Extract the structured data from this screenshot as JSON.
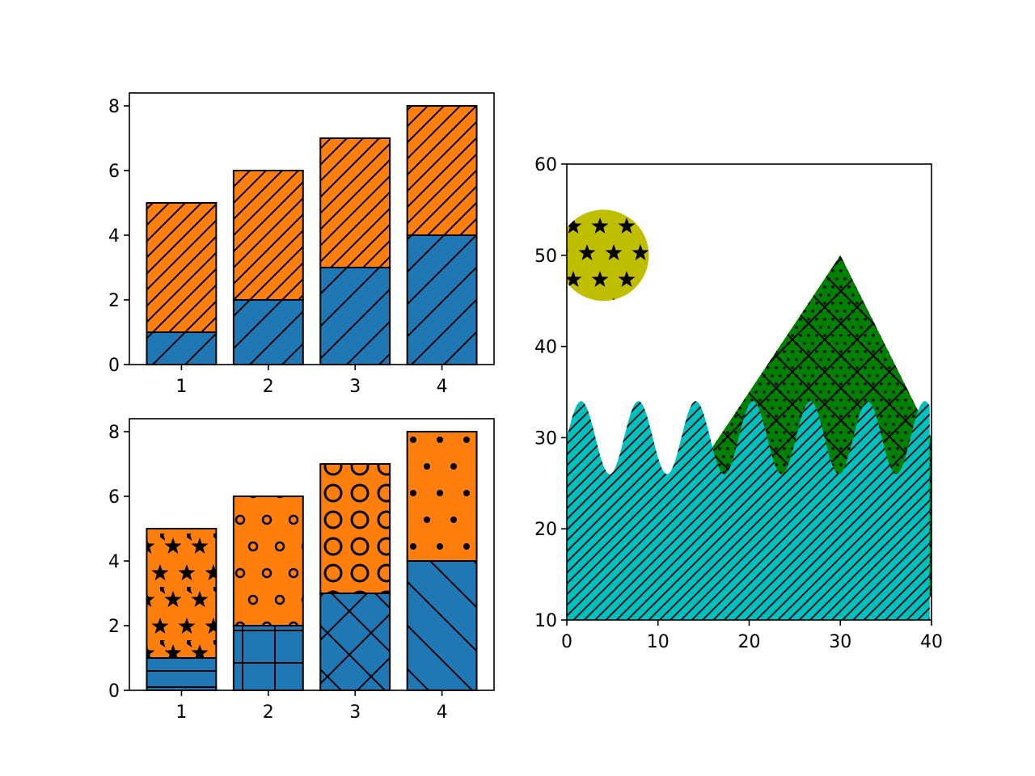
{
  "chart_data": [
    {
      "type": "bar",
      "stacked": true,
      "categories": [
        1,
        2,
        3,
        4
      ],
      "series": [
        {
          "values": [
            1,
            2,
            3,
            4
          ],
          "color": "#1f77b4",
          "hatch": [
            "/",
            "/",
            "/",
            "/"
          ]
        },
        {
          "values": [
            4,
            4,
            4,
            4
          ],
          "bottom": [
            1,
            2,
            3,
            4
          ],
          "color": "#ff7f0e",
          "hatch": [
            "//",
            "//",
            "//",
            "//"
          ]
        }
      ],
      "xlim": [
        0.4,
        4.6
      ],
      "ylim": [
        0,
        8.4
      ],
      "xticks": [
        "1",
        "2",
        "3",
        "4"
      ],
      "yticks": [
        "0",
        "2",
        "4",
        "6",
        "8"
      ],
      "edgecolor": "#000000"
    },
    {
      "type": "bar",
      "stacked": true,
      "categories": [
        1,
        2,
        3,
        4
      ],
      "series": [
        {
          "values": [
            1,
            2,
            3,
            4
          ],
          "color": "#1f77b4",
          "hatch": [
            "-",
            "+",
            "x",
            "\\"
          ]
        },
        {
          "values": [
            4,
            4,
            4,
            4
          ],
          "bottom": [
            1,
            2,
            3,
            4
          ],
          "color": "#ff7f0e",
          "hatch": [
            "*",
            "o",
            "O",
            "."
          ]
        }
      ],
      "xlim": [
        0.4,
        4.6
      ],
      "ylim": [
        0,
        8.4
      ],
      "xticks": [
        "1",
        "2",
        "3",
        "4"
      ],
      "yticks": [
        "0",
        "2",
        "4",
        "6",
        "8"
      ],
      "edgecolor": "#000000"
    },
    {
      "type": "area",
      "xlim": [
        0,
        40
      ],
      "ylim": [
        10,
        60
      ],
      "xticks": [
        "0",
        "10",
        "20",
        "30",
        "40"
      ],
      "yticks": [
        "10",
        "20",
        "30",
        "40",
        "50",
        "60"
      ],
      "fill_between": {
        "function": "4*sin(x)+30",
        "x_range": [
          0,
          40
        ],
        "step": 0.2,
        "y2": 0,
        "color": "#00bfbf",
        "hatch": "///"
      },
      "ellipse": {
        "center": [
          4,
          50
        ],
        "width": 10,
        "height": 10,
        "color": "#bfbf00",
        "hatch": "*"
      },
      "polygon": {
        "points": [
          [
            10,
            20
          ],
          [
            30,
            50
          ],
          [
            50,
            10
          ]
        ],
        "color": "#008000",
        "hatch": "\\/..."
      }
    }
  ]
}
